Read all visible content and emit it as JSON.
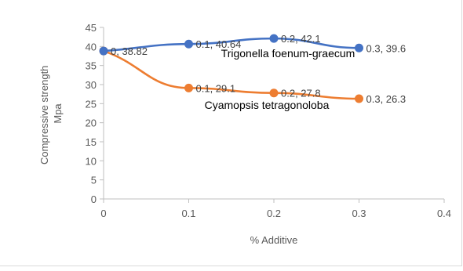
{
  "chart_data": {
    "type": "line",
    "xlabel": "% Additive",
    "ylabel_lines": [
      "Compressive strength",
      "Mpa"
    ],
    "xlim": [
      0,
      0.4
    ],
    "ylim": [
      0,
      45
    ],
    "x_ticks": [
      "0",
      "0.1",
      "0.2",
      "0.3",
      "0.4"
    ],
    "y_ticks": [
      "0",
      "5",
      "10",
      "15",
      "20",
      "25",
      "30",
      "35",
      "40",
      "45"
    ],
    "grid": false,
    "legend": "none",
    "series": [
      {
        "name": "Trigonella foenum-graecum",
        "color": "#4472C4",
        "x": [
          0,
          0.1,
          0.2,
          0.3
        ],
        "y": [
          38.82,
          40.64,
          42.1,
          39.6
        ],
        "data_labels": [
          "0, 38.82",
          "0.1, 40.64",
          "0.2, 42.1",
          "0.3, 39.6"
        ]
      },
      {
        "name": "Cyamopsis tetragonoloba",
        "color": "#ED7D31",
        "x": [
          0,
          0.1,
          0.2,
          0.3
        ],
        "y": [
          38.82,
          29.1,
          27.8,
          26.3
        ],
        "data_labels": [
          "",
          "0.1, 29.1",
          "0.2, 27.8",
          "0.3, 26.3"
        ]
      }
    ]
  }
}
